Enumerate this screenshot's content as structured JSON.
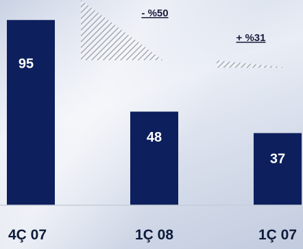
{
  "chart_data": {
    "type": "bar",
    "categories": [
      "4Ç 07",
      "1Ç 08",
      "1Ç 07"
    ],
    "values": [
      95,
      48,
      37
    ],
    "value_labels": [
      "95",
      "48",
      "37"
    ],
    "bar_color": "#0d1f5c",
    "title": "",
    "xlabel": "",
    "ylabel": "",
    "ylim": [
      0,
      100
    ],
    "grid": false,
    "annotations": [
      {
        "text": "- %50",
        "between": [
          "4Ç 07",
          "1Ç 08"
        ]
      },
      {
        "text": "+ %31",
        "between": [
          "1Ç 08",
          "1Ç 07"
        ]
      }
    ]
  }
}
